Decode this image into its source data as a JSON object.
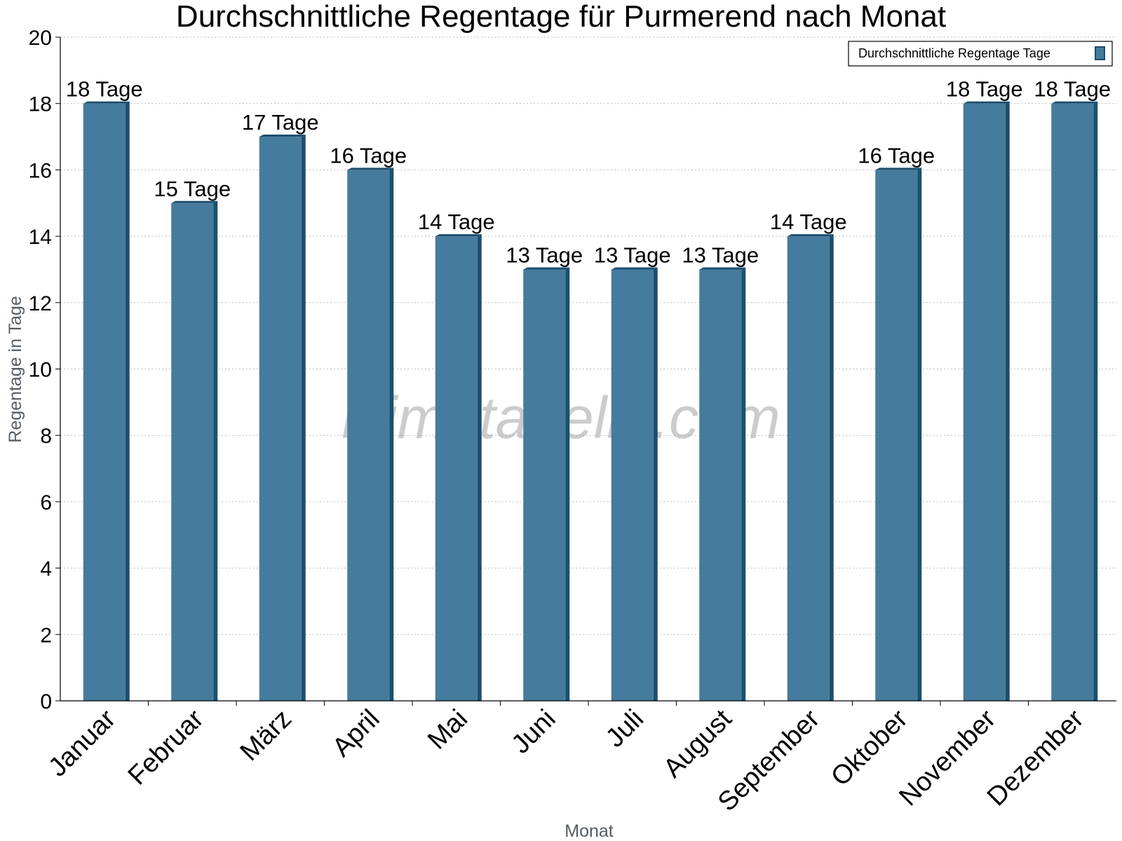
{
  "chart_data": {
    "type": "bar",
    "title": "Durchschnittliche Regentage für Purmerend nach Monat",
    "xlabel": "Monat",
    "ylabel": "Regentage in Tage",
    "ylim": [
      0,
      20
    ],
    "yticks": [
      0,
      2,
      4,
      6,
      8,
      10,
      12,
      14,
      16,
      18,
      20
    ],
    "grid": true,
    "legend_position": "top-right",
    "categories": [
      "Januar",
      "Februar",
      "März",
      "April",
      "Mai",
      "Juni",
      "Juli",
      "August",
      "September",
      "Oktober",
      "November",
      "Dezember"
    ],
    "series": [
      {
        "name": "Durchschnittliche Regentage Tage",
        "values": [
          18,
          15,
          17,
          16,
          14,
          13,
          13,
          13,
          14,
          16,
          18,
          18
        ],
        "labels": [
          "18 Tage",
          "15 Tage",
          "17 Tage",
          "16 Tage",
          "14 Tage",
          "13 Tage",
          "13 Tage",
          "13 Tage",
          "14 Tage",
          "16 Tage",
          "18 Tage",
          "18 Tage"
        ],
        "color": "#457b9d",
        "side_color": "#1d4e6e"
      }
    ]
  },
  "watermark": "klimatabelle.com"
}
